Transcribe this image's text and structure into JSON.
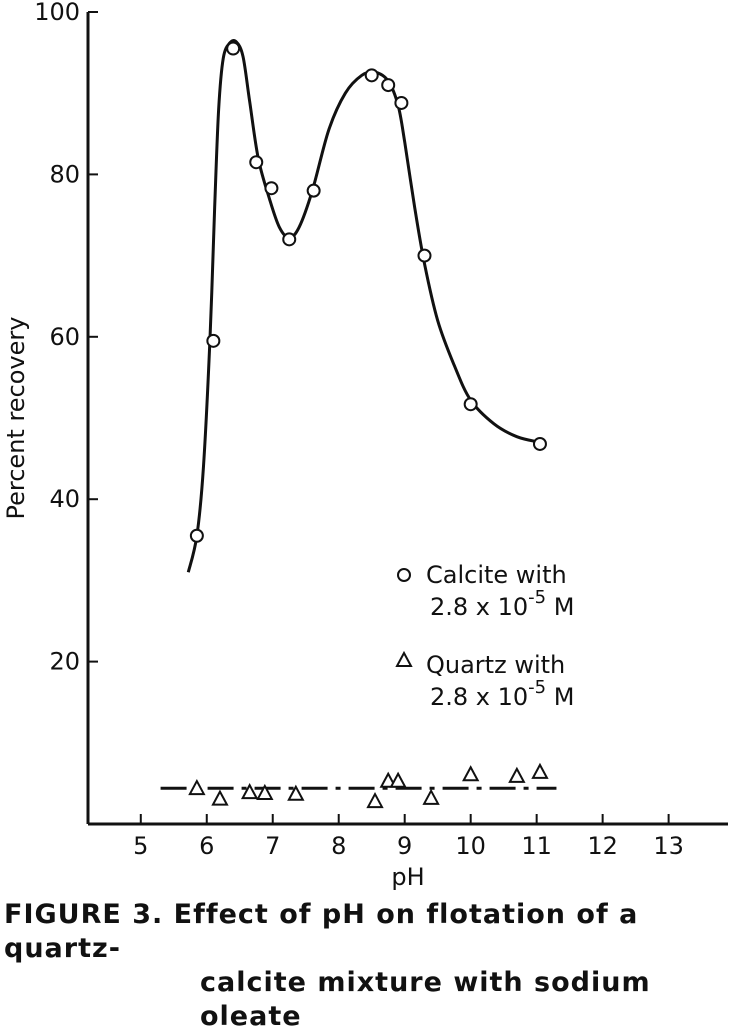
{
  "chart_data": {
    "type": "scatter",
    "title": "",
    "xlabel": "pH",
    "ylabel": "Percent recovery",
    "xlim": [
      4.2,
      13.9
    ],
    "ylim": [
      0,
      100
    ],
    "x_ticks": [
      "5",
      "6",
      "7",
      "8",
      "9",
      "10",
      "11",
      "12",
      "13"
    ],
    "y_ticks": [
      "20",
      "40",
      "60",
      "80",
      "100"
    ],
    "grid": false,
    "legend_position": "center-right",
    "series": [
      {
        "name": "Calcite with 2.8 x 10-5 M",
        "marker": "circle",
        "line": "solid smooth curve",
        "color": "#111111",
        "points": [
          [
            5.85,
            35.5
          ],
          [
            6.1,
            59.5
          ],
          [
            6.4,
            95.5
          ],
          [
            6.75,
            81.5
          ],
          [
            6.98,
            78.3
          ],
          [
            7.25,
            72.0
          ],
          [
            7.62,
            78.0
          ],
          [
            8.5,
            92.2
          ],
          [
            8.75,
            91.0
          ],
          [
            8.95,
            88.8
          ],
          [
            9.3,
            70.0
          ],
          [
            10.0,
            51.7
          ],
          [
            11.05,
            46.8
          ]
        ],
        "curve": [
          [
            5.72,
            31.0
          ],
          [
            5.85,
            35.5
          ],
          [
            5.95,
            44
          ],
          [
            6.05,
            60
          ],
          [
            6.12,
            76
          ],
          [
            6.18,
            88
          ],
          [
            6.25,
            94.3
          ],
          [
            6.35,
            96.2
          ],
          [
            6.45,
            96.3
          ],
          [
            6.55,
            94.5
          ],
          [
            6.65,
            89
          ],
          [
            6.78,
            82
          ],
          [
            6.95,
            77
          ],
          [
            7.1,
            73.5
          ],
          [
            7.25,
            72.2
          ],
          [
            7.4,
            73.5
          ],
          [
            7.6,
            78
          ],
          [
            7.85,
            85.5
          ],
          [
            8.1,
            90
          ],
          [
            8.35,
            92.2
          ],
          [
            8.55,
            92.6
          ],
          [
            8.75,
            91.5
          ],
          [
            8.9,
            88.5
          ],
          [
            9.0,
            84
          ],
          [
            9.15,
            76
          ],
          [
            9.3,
            69
          ],
          [
            9.5,
            62
          ],
          [
            9.75,
            56.5
          ],
          [
            10.0,
            52.2
          ],
          [
            10.35,
            49.3
          ],
          [
            10.7,
            47.7
          ],
          [
            11.05,
            47.0
          ]
        ]
      },
      {
        "name": "Quartz with 2.8 x 10-5 M",
        "marker": "triangle",
        "line": "dash-dot",
        "color": "#111111",
        "points": [
          [
            5.85,
            4.3
          ],
          [
            6.2,
            3.0
          ],
          [
            6.65,
            3.8
          ],
          [
            6.88,
            3.7
          ],
          [
            7.35,
            3.6
          ],
          [
            8.55,
            2.7
          ],
          [
            8.75,
            5.2
          ],
          [
            8.9,
            5.2
          ],
          [
            9.4,
            3.1
          ],
          [
            10.0,
            6.0
          ],
          [
            10.7,
            5.8
          ],
          [
            11.05,
            6.3
          ]
        ],
        "line_value": 4.4,
        "line_range": [
          5.3,
          11.3
        ]
      }
    ],
    "legend": {
      "entries": [
        {
          "symbol": "circle",
          "line1": "Calcite with",
          "line2_base": "2.8 x 10",
          "line2_exp": "-5",
          "line2_unit": " M"
        },
        {
          "symbol": "triangle",
          "line1": "Quartz with",
          "line2_base": "2.8 x 10",
          "line2_exp": "-5",
          "line2_unit": " M"
        }
      ]
    }
  },
  "caption": {
    "line1": "FIGURE 3.  Effect of pH on flotation of a quartz-",
    "line2": "calcite mixture with sodium oleate"
  }
}
